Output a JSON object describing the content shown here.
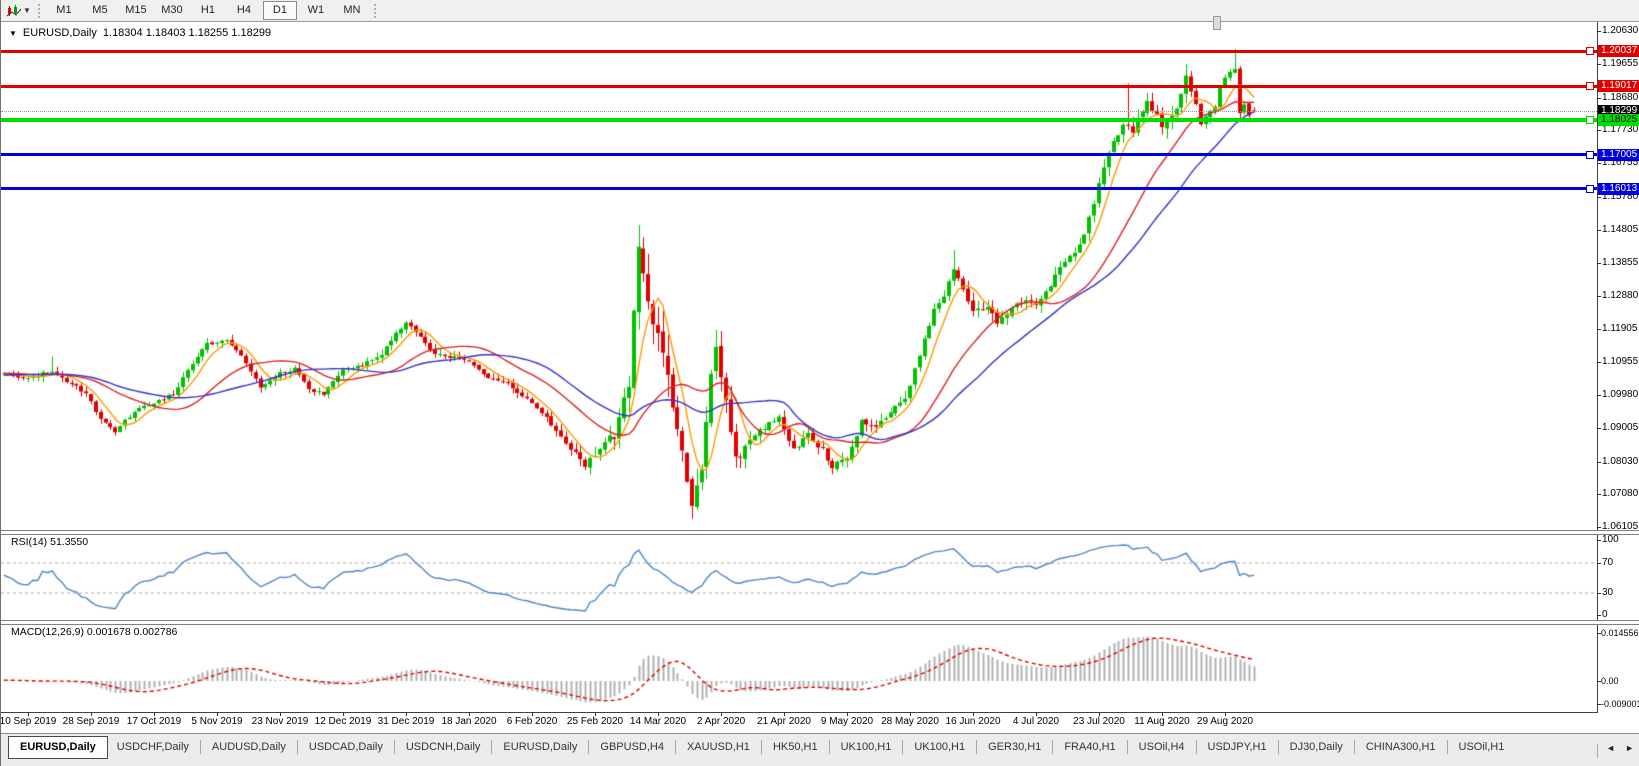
{
  "toolbar": {
    "timeframes": [
      {
        "label": "M1",
        "active": false
      },
      {
        "label": "M5",
        "active": false
      },
      {
        "label": "M15",
        "active": false
      },
      {
        "label": "M30",
        "active": false
      },
      {
        "label": "H1",
        "active": false
      },
      {
        "label": "H4",
        "active": false
      },
      {
        "label": "D1",
        "active": true
      },
      {
        "label": "W1",
        "active": false
      },
      {
        "label": "MN",
        "active": false
      }
    ]
  },
  "chart": {
    "symbol_label": "EURUSD,Daily",
    "ohlc_text": "1.18304 1.18403 1.18255 1.18299",
    "price_scale": {
      "ticks": [
        "1.20630",
        "1.19655",
        "1.18680",
        "1.17730",
        "1.16755",
        "1.15780",
        "1.14805",
        "1.13855",
        "1.12880",
        "1.11905",
        "1.10955",
        "1.09980",
        "1.09005",
        "1.08030",
        "1.07080",
        "1.06105"
      ]
    },
    "levels": [
      {
        "name": "resistance-line-1",
        "value": 1.20037,
        "label": "1.20037",
        "line_color": "#e00000",
        "label_bg": "#e00000",
        "label_fg": "#ffffff",
        "thickness": 3,
        "style": "solid"
      },
      {
        "name": "resistance-line-2",
        "value": 1.19017,
        "label": "1.19017",
        "line_color": "#e00000",
        "label_bg": "#e00000",
        "label_fg": "#ffffff",
        "thickness": 3,
        "style": "solid"
      },
      {
        "name": "current-price-line",
        "value": 1.18299,
        "label": "1.18299",
        "line_color": "#999999",
        "label_bg": "#000000",
        "label_fg": "#ffffff",
        "thickness": 1,
        "style": "dotted"
      },
      {
        "name": "support-line-green",
        "value": 1.18025,
        "label": "1.18025",
        "line_color": "#00dd00",
        "label_bg": "#00dd00",
        "label_fg": "#000000",
        "thickness": 4,
        "style": "solid"
      },
      {
        "name": "support-line-blue-1",
        "value": 1.17005,
        "label": "1.17005",
        "line_color": "#0000dd",
        "label_bg": "#0000dd",
        "label_fg": "#ffffff",
        "thickness": 3,
        "style": "solid"
      },
      {
        "name": "support-line-blue-2",
        "value": 1.16013,
        "label": "1.16013",
        "line_color": "#0000dd",
        "label_bg": "#0000dd",
        "label_fg": "#ffffff",
        "thickness": 3,
        "style": "solid"
      }
    ]
  },
  "rsi_pane": {
    "label": "RSI(14)",
    "value": "51.3550",
    "scale_ticks": [
      "100",
      "70",
      "30",
      "0"
    ],
    "dashed_levels": [
      70,
      30
    ],
    "line_color": "#4f86c6"
  },
  "macd_pane": {
    "label": "MACD(12,26,9)",
    "values": "0.001678 0.002786",
    "scale_top": "0.014556",
    "scale_zero": "0.00",
    "scale_bottom": "-0.009001",
    "histogram_color": "#b0b0b0",
    "signal_color": "#e00000"
  },
  "x_axis": {
    "dates": [
      "10 Sep 2019",
      "28 Sep 2019",
      "17 Oct 2019",
      "5 Nov 2019",
      "23 Nov 2019",
      "12 Dec 2019",
      "31 Dec 2019",
      "18 Jan 2020",
      "6 Feb 2020",
      "25 Feb 2020",
      "14 Mar 2020",
      "2 Apr 2020",
      "21 Apr 2020",
      "9 May 2020",
      "28 May 2020",
      "16 Jun 2020",
      "4 Jul 2020",
      "23 Jul 2020",
      "11 Aug 2020",
      "29 Aug 2020"
    ]
  },
  "tabs": {
    "items": [
      {
        "label": "EURUSD,Daily",
        "active": true
      },
      {
        "label": "USDCHF,Daily",
        "active": false
      },
      {
        "label": "AUDUSD,Daily",
        "active": false
      },
      {
        "label": "USDCAD,Daily",
        "active": false
      },
      {
        "label": "USDCNH,Daily",
        "active": false
      },
      {
        "label": "EURUSD,Daily",
        "active": false
      },
      {
        "label": "GBPUSD,H4",
        "active": false
      },
      {
        "label": "XAUUSD,H1",
        "active": false
      },
      {
        "label": "HK50,H1",
        "active": false
      },
      {
        "label": "UK100,H1",
        "active": false
      },
      {
        "label": "UK100,H1",
        "active": false
      },
      {
        "label": "GER30,H1",
        "active": false
      },
      {
        "label": "FRA40,H1",
        "active": false
      },
      {
        "label": "USOil,H4",
        "active": false
      },
      {
        "label": "USDJPY,H1",
        "active": false
      },
      {
        "label": "DJ30,Daily",
        "active": false
      },
      {
        "label": "CHINA300,H1",
        "active": false
      },
      {
        "label": "USOil,H1",
        "active": false
      }
    ],
    "scroll_left": "◄",
    "scroll_right": "►"
  },
  "chart_data": {
    "type": "candlestick",
    "symbol": "EURUSD",
    "timeframe": "Daily",
    "current_bar": {
      "open": 1.18304,
      "high": 1.18403,
      "low": 1.18255,
      "close": 1.18299
    },
    "visible_price_range": [
      1.06105,
      1.2063
    ],
    "horizontal_levels": [
      1.20037,
      1.19017,
      1.18025,
      1.17005,
      1.16013
    ],
    "current_price": 1.18299,
    "close_anchors": [
      [
        -65,
        1.1075
      ],
      [
        -40,
        1.103
      ],
      [
        -20,
        1.1065
      ],
      [
        -5,
        1.1058
      ],
      [
        0,
        1.1046
      ],
      [
        4,
        1.1068
      ],
      [
        8,
        1.104
      ],
      [
        12,
        1.1
      ],
      [
        15,
        1.093
      ],
      [
        18,
        1.089
      ],
      [
        22,
        1.095
      ],
      [
        26,
        1.0975
      ],
      [
        30,
        1.1
      ],
      [
        34,
        1.109
      ],
      [
        37,
        1.1145
      ],
      [
        41,
        1.116
      ],
      [
        44,
        1.111
      ],
      [
        48,
        1.1025
      ],
      [
        52,
        1.106
      ],
      [
        55,
        1.1075
      ],
      [
        58,
        1.101
      ],
      [
        61,
        1.1
      ],
      [
        65,
        1.107
      ],
      [
        69,
        1.1085
      ],
      [
        73,
        1.112
      ],
      [
        78,
        1.1215
      ],
      [
        81,
        1.1165
      ],
      [
        84,
        1.112
      ],
      [
        88,
        1.111
      ],
      [
        91,
        1.1095
      ],
      [
        95,
        1.105
      ],
      [
        99,
        1.103
      ],
      [
        104,
        1.0975
      ],
      [
        108,
        1.0915
      ],
      [
        112,
        1.084
      ],
      [
        115,
        1.0795
      ],
      [
        118,
        1.084
      ],
      [
        121,
        1.088
      ],
      [
        124,
        1.1025
      ],
      [
        126,
        1.144
      ],
      [
        128,
        1.128
      ],
      [
        131,
        1.111
      ],
      [
        133,
        1.096
      ],
      [
        135,
        1.082
      ],
      [
        137,
        1.066
      ],
      [
        139,
        1.077
      ],
      [
        141,
        1.108
      ],
      [
        142,
        1.114
      ],
      [
        144,
        1.099
      ],
      [
        146,
        1.081
      ],
      [
        149,
        1.086
      ],
      [
        152,
        1.0905
      ],
      [
        155,
        1.0935
      ],
      [
        158,
        1.0835
      ],
      [
        161,
        1.088
      ],
      [
        164,
        1.0835
      ],
      [
        166,
        1.079
      ],
      [
        169,
        1.0815
      ],
      [
        172,
        1.092
      ],
      [
        175,
        1.09
      ],
      [
        178,
        1.0955
      ],
      [
        181,
        1.099
      ],
      [
        184,
        1.111
      ],
      [
        187,
        1.1255
      ],
      [
        189,
        1.129
      ],
      [
        191,
        1.137
      ],
      [
        193,
        1.13
      ],
      [
        195,
        1.124
      ],
      [
        198,
        1.125
      ],
      [
        200,
        1.1215
      ],
      [
        203,
        1.125
      ],
      [
        206,
        1.128
      ],
      [
        208,
        1.1255
      ],
      [
        211,
        1.132
      ],
      [
        214,
        1.1395
      ],
      [
        217,
        1.143
      ],
      [
        220,
        1.156
      ],
      [
        223,
        1.171
      ],
      [
        226,
        1.178
      ],
      [
        228,
        1.177
      ],
      [
        231,
        1.1865
      ],
      [
        234,
        1.1785
      ],
      [
        237,
        1.1845
      ],
      [
        239,
        1.193
      ],
      [
        242,
        1.18
      ],
      [
        245,
        1.185
      ],
      [
        247,
        1.1935
      ],
      [
        249,
        1.1945
      ],
      [
        250,
        1.182
      ],
      [
        251,
        1.185
      ],
      [
        252,
        1.1815
      ],
      [
        253,
        1.18299
      ]
    ],
    "volatility_anchors": [
      [
        -65,
        0.0018
      ],
      [
        0,
        0.002
      ],
      [
        105,
        0.0022
      ],
      [
        115,
        0.0032
      ],
      [
        124,
        0.006
      ],
      [
        128,
        0.009
      ],
      [
        140,
        0.009
      ],
      [
        146,
        0.005
      ],
      [
        152,
        0.003
      ],
      [
        186,
        0.0032
      ],
      [
        215,
        0.003
      ],
      [
        222,
        0.0042
      ],
      [
        240,
        0.004
      ],
      [
        253,
        0.0028
      ]
    ],
    "wick_high_overrides": [
      [
        5,
        1.111
      ],
      [
        126,
        1.1495
      ],
      [
        191,
        1.1422
      ],
      [
        227,
        1.1909
      ],
      [
        239,
        1.1966
      ],
      [
        249,
        1.201
      ]
    ],
    "wick_low_overrides": [
      [
        18,
        1.0879
      ],
      [
        115,
        1.0778
      ],
      [
        137,
        1.0636
      ],
      [
        166,
        1.0766
      ]
    ],
    "moving_averages": [
      {
        "period": 6,
        "color": "#ff9900"
      },
      {
        "period": 20,
        "color": "#dd2222"
      },
      {
        "period": 32,
        "color": "#3333cc"
      }
    ],
    "oscillators": {
      "rsi_period": 14,
      "macd_fast": 12,
      "macd_slow": 26,
      "macd_signal": 9
    },
    "candle_colors": {
      "up": "#00c000",
      "down": "#e00000"
    }
  }
}
